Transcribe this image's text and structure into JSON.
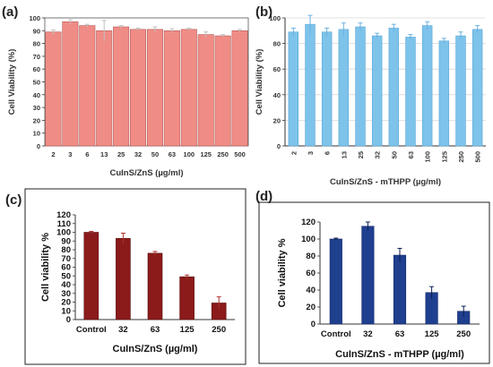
{
  "chart_data": [
    {
      "panel": "(a)",
      "type": "bar",
      "categories": [
        "2",
        "3",
        "6",
        "13",
        "25",
        "32",
        "50",
        "63",
        "100",
        "125",
        "250",
        "500"
      ],
      "values": [
        89,
        97,
        94,
        90,
        93,
        91,
        91,
        90,
        91,
        87,
        86,
        90
      ],
      "errors": [
        1.5,
        1.5,
        1,
        8,
        1,
        1,
        2,
        1.5,
        1,
        2,
        1,
        1
      ],
      "ylim": [
        0,
        100
      ],
      "yticks": [
        0,
        10,
        20,
        30,
        40,
        50,
        60,
        70,
        80,
        90,
        100
      ],
      "xlabel": "CuInS/ZnS (µg/ml)",
      "ylabel": "Cell Viability (%)",
      "grid": false,
      "colors": {
        "bar": "#f08c86",
        "edge": "#b55a55"
      }
    },
    {
      "panel": "(b)",
      "type": "bar",
      "categories": [
        "2",
        "3",
        "6",
        "13",
        "25",
        "32",
        "50",
        "63",
        "100",
        "125",
        "250",
        "500"
      ],
      "values": [
        89,
        95,
        89,
        91,
        93,
        86,
        92,
        85,
        94,
        82,
        86,
        91
      ],
      "errors": [
        3,
        7,
        3,
        5,
        3,
        2,
        3,
        2,
        3,
        2,
        3,
        3
      ],
      "ylim": [
        0,
        100
      ],
      "yticks": [
        0,
        20,
        40,
        60,
        80,
        100
      ],
      "xlabel": "CuInS/ZnS - mTHPP (µg/ml)",
      "ylabel": "Cell Viability (%)",
      "grid": true,
      "colors": {
        "bar": "#7ec3ea",
        "edge": "#5aa8d8"
      }
    },
    {
      "panel": "(c)",
      "type": "bar",
      "categories": [
        "Control",
        "32",
        "63",
        "125",
        "250"
      ],
      "values": [
        100,
        93,
        76,
        49,
        19
      ],
      "errors": [
        1,
        6,
        2,
        2,
        7
      ],
      "ylim": [
        0,
        120
      ],
      "yticks": [
        0,
        10,
        20,
        30,
        40,
        50,
        60,
        70,
        80,
        90,
        100,
        110,
        120
      ],
      "xlabel": "CuInS/ZnS (µg/ml)",
      "ylabel": "Cell viability %",
      "grid": false,
      "colors": {
        "bar": "#8b1a1a",
        "edge": "#5a0e0e"
      }
    },
    {
      "panel": "(d)",
      "type": "bar",
      "categories": [
        "Control",
        "32",
        "63",
        "125",
        "250"
      ],
      "values": [
        100,
        115,
        81,
        37,
        15
      ],
      "errors": [
        1,
        5,
        8,
        7,
        6
      ],
      "ylim": [
        0,
        120
      ],
      "yticks": [
        0,
        20,
        40,
        60,
        80,
        100,
        120
      ],
      "xlabel": "CuInS/ZnS - mTHPP (µg/ml)",
      "ylabel": "Cell viability %",
      "grid": false,
      "colors": {
        "bar": "#1f3f8f",
        "edge": "#142a66"
      }
    }
  ]
}
